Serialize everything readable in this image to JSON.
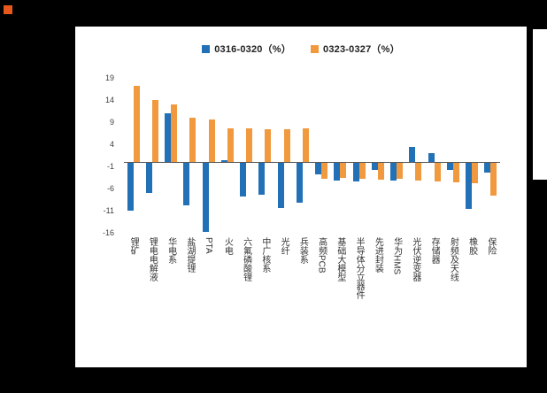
{
  "decor": {
    "background": "#000000",
    "panel_background": "#FFFFFF",
    "corner_square_color": "#E8571C",
    "right_strip_color": "#FFFFFF"
  },
  "chart_data": {
    "type": "bar",
    "title": "",
    "legend_position": "top-center",
    "grid": false,
    "axis_line_color": "#595959",
    "ylim": [
      -16,
      19
    ],
    "yticks": [
      19,
      14,
      9,
      4,
      -1,
      -6,
      -11,
      -16
    ],
    "categories": [
      "锂矿",
      "锂电电解液",
      "华电系",
      "盐湖提锂",
      "PTA",
      "火电",
      "六氟磷酸锂",
      "中广核系",
      "光纤",
      "兵装系",
      "高频PCB",
      "基础大模型",
      "半导体分立器件",
      "先进封装",
      "华为HMS",
      "光伏逆变器",
      "存储器",
      "射频及天线",
      "橡胶",
      "保险"
    ],
    "series": [
      {
        "name": "0316-0320（%）",
        "color": "#2271B6",
        "values": [
          -10.8,
          -6.7,
          11.0,
          -9.6,
          -15.6,
          0.4,
          -7.6,
          -7.2,
          -10.2,
          -9.0,
          -2.6,
          -4.0,
          -4.2,
          -1.6,
          -4.0,
          3.4,
          2.0,
          -1.6,
          -10.4,
          -2.2
        ]
      },
      {
        "name": "0323-0327（%）",
        "color": "#F0993E",
        "values": [
          17.2,
          14.0,
          13.0,
          10.0,
          9.6,
          7.6,
          7.6,
          7.4,
          7.5,
          7.6,
          -3.6,
          -3.4,
          -3.6,
          -3.8,
          -3.6,
          -4.0,
          -4.2,
          -4.4,
          -4.6,
          -7.4
        ]
      }
    ]
  }
}
